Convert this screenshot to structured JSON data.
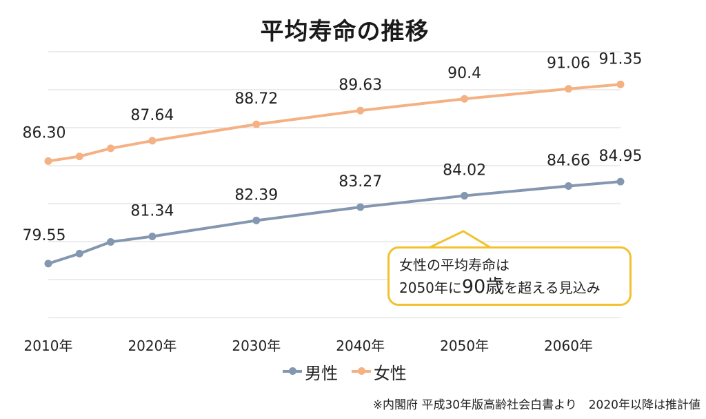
{
  "chart_data": {
    "type": "line",
    "title": "平均寿命の推移",
    "x": [
      2010,
      2013,
      2016,
      2020,
      2030,
      2040,
      2050,
      2060,
      2065
    ],
    "x_tick_labels": [
      "2010年",
      "2020年",
      "2030年",
      "2040年",
      "2050年",
      "2060年"
    ],
    "x_ticks": [
      2010,
      2020,
      2030,
      2040,
      2050,
      2060
    ],
    "ylim": [
      76.0,
      93.5
    ],
    "grid": true,
    "legend_position": "bottom",
    "series": [
      {
        "name": "男性",
        "color": "#8497b0",
        "values": [
          79.55,
          80.21,
          80.98,
          81.34,
          82.39,
          83.27,
          84.02,
          84.66,
          84.95
        ],
        "data_labels": [
          {
            "x": 2010,
            "text": "79.55"
          },
          {
            "x": 2020,
            "text": "81.34"
          },
          {
            "x": 2030,
            "text": "82.39"
          },
          {
            "x": 2040,
            "text": "83.27"
          },
          {
            "x": 2050,
            "text": "84.02"
          },
          {
            "x": 2060,
            "text": "84.66"
          },
          {
            "x": 2065,
            "text": "84.95"
          }
        ]
      },
      {
        "name": "女性",
        "color": "#f4b183",
        "values": [
          86.3,
          86.61,
          87.14,
          87.64,
          88.72,
          89.63,
          90.4,
          91.06,
          91.35
        ],
        "data_labels": [
          {
            "x": 2010,
            "text": "86.30"
          },
          {
            "x": 2020,
            "text": "87.64"
          },
          {
            "x": 2030,
            "text": "88.72"
          },
          {
            "x": 2040,
            "text": "89.63"
          },
          {
            "x": 2050,
            "text": "90.4"
          },
          {
            "x": 2060,
            "text": "91.06"
          },
          {
            "x": 2065,
            "text": "91.35"
          }
        ]
      }
    ]
  },
  "callout": {
    "line1": "女性の平均寿命は",
    "line2_pre": "2050年に",
    "line2_big": "90歳",
    "line2_post": "を超える見込み",
    "border_color": "#f2c12e"
  },
  "source": "※内閣府 平成30年版高齢社会白書より　2020年以降は推計値"
}
